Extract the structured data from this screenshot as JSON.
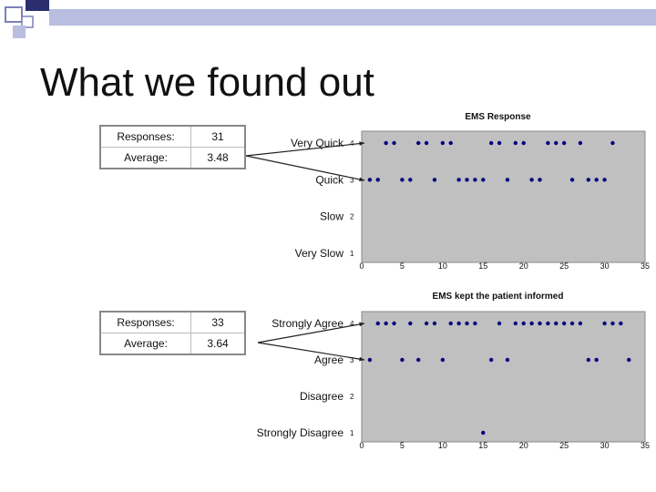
{
  "slide": {
    "title": "What we found out"
  },
  "stats": [
    {
      "responses_label": "Responses:",
      "responses_value": "31",
      "average_label": "Average:",
      "average_value": "3.48"
    },
    {
      "responses_label": "Responses:",
      "responses_value": "33",
      "average_label": "Average:",
      "average_value": "3.64"
    }
  ],
  "colors": {
    "plot_background": "#c0c0c0",
    "point": "#000080",
    "accent_navy": "#2a2d6e",
    "accent_light": "#b9bde0"
  },
  "chart_data": [
    {
      "type": "scatter",
      "title": "EMS Response",
      "xlabel": "",
      "ylabel": "",
      "xlim": [
        0,
        35
      ],
      "ylim": [
        1,
        4
      ],
      "x_ticks": [
        "0",
        "5",
        "10",
        "15",
        "20",
        "25",
        "30",
        "35"
      ],
      "y_ticks": [
        {
          "value": 4,
          "tick": "4",
          "category": "Very Quick"
        },
        {
          "value": 3,
          "tick": "3",
          "category": "Quick"
        },
        {
          "value": 2,
          "tick": "2",
          "category": "Slow"
        },
        {
          "value": 1,
          "tick": "1",
          "category": "Very Slow"
        }
      ],
      "grid": false,
      "points": [
        [
          1,
          3
        ],
        [
          2,
          3
        ],
        [
          3,
          4
        ],
        [
          4,
          4
        ],
        [
          5,
          3
        ],
        [
          6,
          3
        ],
        [
          7,
          4
        ],
        [
          8,
          4
        ],
        [
          9,
          3
        ],
        [
          10,
          4
        ],
        [
          11,
          4
        ],
        [
          12,
          3
        ],
        [
          13,
          3
        ],
        [
          14,
          3
        ],
        [
          15,
          3
        ],
        [
          16,
          4
        ],
        [
          17,
          4
        ],
        [
          18,
          3
        ],
        [
          19,
          4
        ],
        [
          20,
          4
        ],
        [
          21,
          3
        ],
        [
          22,
          3
        ],
        [
          23,
          4
        ],
        [
          24,
          4
        ],
        [
          25,
          4
        ],
        [
          26,
          3
        ],
        [
          27,
          4
        ],
        [
          28,
          3
        ],
        [
          29,
          3
        ],
        [
          30,
          3
        ],
        [
          31,
          4
        ]
      ]
    },
    {
      "type": "scatter",
      "title": "EMS kept the patient informed",
      "xlabel": "",
      "ylabel": "",
      "xlim": [
        0,
        35
      ],
      "ylim": [
        1,
        4
      ],
      "x_ticks": [
        "0",
        "5",
        "10",
        "15",
        "20",
        "25",
        "30",
        "35"
      ],
      "y_ticks": [
        {
          "value": 4,
          "tick": "4",
          "category": "Strongly Agree"
        },
        {
          "value": 3,
          "tick": "3",
          "category": "Agree"
        },
        {
          "value": 2,
          "tick": "2",
          "category": "Disagree"
        },
        {
          "value": 1,
          "tick": "1",
          "category": "Strongly Disagree"
        }
      ],
      "grid": false,
      "points": [
        [
          1,
          3
        ],
        [
          2,
          4
        ],
        [
          3,
          4
        ],
        [
          4,
          4
        ],
        [
          5,
          3
        ],
        [
          6,
          4
        ],
        [
          7,
          3
        ],
        [
          8,
          4
        ],
        [
          9,
          4
        ],
        [
          10,
          3
        ],
        [
          11,
          4
        ],
        [
          12,
          4
        ],
        [
          13,
          4
        ],
        [
          14,
          4
        ],
        [
          15,
          1
        ],
        [
          16,
          3
        ],
        [
          17,
          4
        ],
        [
          18,
          3
        ],
        [
          19,
          4
        ],
        [
          20,
          4
        ],
        [
          21,
          4
        ],
        [
          22,
          4
        ],
        [
          23,
          4
        ],
        [
          24,
          4
        ],
        [
          25,
          4
        ],
        [
          26,
          4
        ],
        [
          27,
          4
        ],
        [
          28,
          3
        ],
        [
          29,
          3
        ],
        [
          30,
          4
        ],
        [
          31,
          4
        ],
        [
          32,
          4
        ],
        [
          33,
          3
        ]
      ]
    }
  ]
}
